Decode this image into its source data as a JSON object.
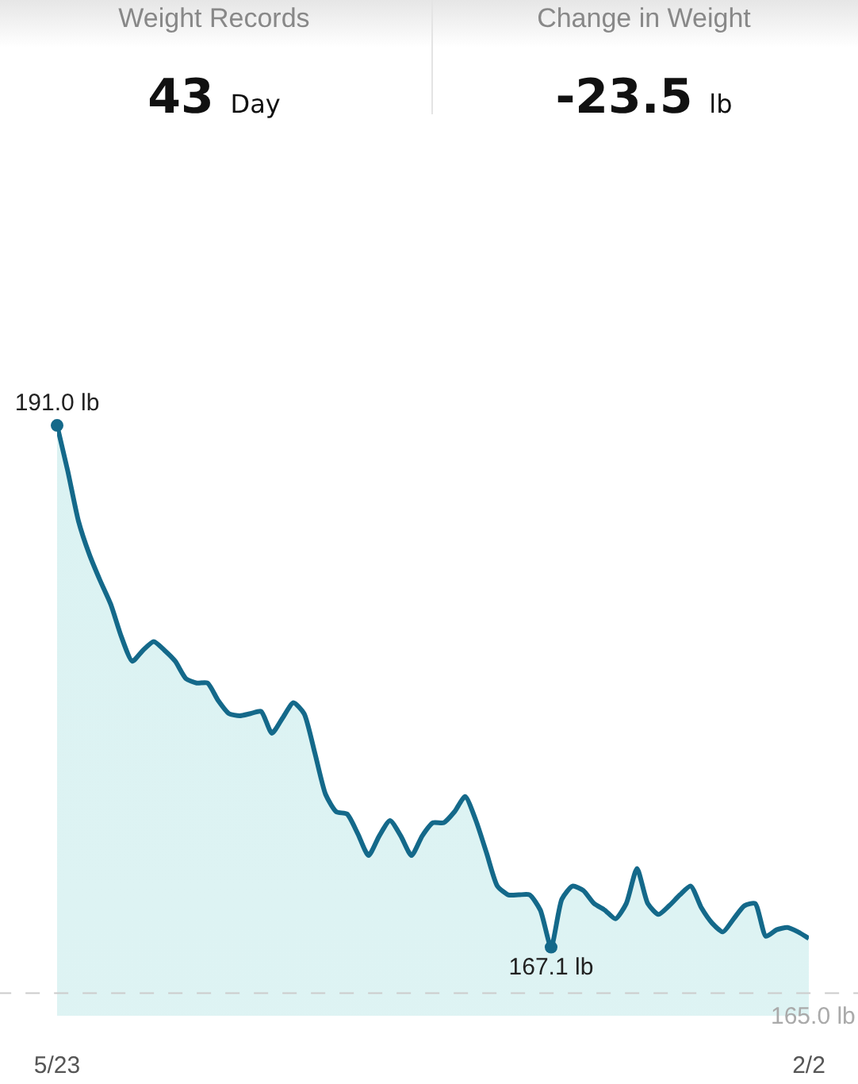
{
  "chart_data": {
    "type": "area",
    "annotations": [
      "Weight Records",
      "43 Day",
      "Change in Weight",
      "-23.5 lb"
    ],
    "categories": [
      "5/23",
      null,
      null,
      null,
      null,
      null,
      null,
      null,
      null,
      null,
      null,
      null,
      null,
      null,
      null,
      null,
      null,
      null,
      null,
      null,
      null,
      null,
      null,
      null,
      null,
      null,
      null,
      null,
      null,
      null,
      null,
      null,
      null,
      null,
      null,
      null,
      null,
      null,
      null,
      null,
      null,
      null,
      null,
      null,
      null,
      null,
      null,
      null,
      null,
      null,
      null,
      null,
      null,
      null,
      null,
      null,
      null,
      null,
      null,
      null,
      null,
      null,
      null,
      null,
      null,
      null,
      null,
      null,
      null,
      null,
      "2/2"
    ],
    "values": [
      191.0,
      188.9,
      186.6,
      185.1,
      183.9,
      182.8,
      181.3,
      180.2,
      180.7,
      181.1,
      180.7,
      180.2,
      179.4,
      179.2,
      179.2,
      178.4,
      177.8,
      177.7,
      177.8,
      177.9,
      176.9,
      177.6,
      178.3,
      177.8,
      176.0,
      174.1,
      173.3,
      173.2,
      172.3,
      171.3,
      172.2,
      172.9,
      172.2,
      171.3,
      172.2,
      172.8,
      172.8,
      173.3,
      174.0,
      172.9,
      171.4,
      169.9,
      169.5,
      169.5,
      169.5,
      168.8,
      167.1,
      169.3,
      169.9,
      169.7,
      169.1,
      168.8,
      168.4,
      169.1,
      170.7,
      169.1,
      168.6,
      169.0,
      169.5,
      169.9,
      168.9,
      168.2,
      167.8,
      168.4,
      169.0,
      169.1,
      167.6,
      167.9,
      168.0,
      167.8,
      167.5
    ],
    "value_labels": [
      "191.0 lb",
      null,
      null,
      null,
      null,
      null,
      null,
      null,
      null,
      null,
      null,
      null,
      null,
      null,
      null,
      null,
      null,
      null,
      null,
      null,
      null,
      null,
      null,
      null,
      null,
      null,
      null,
      null,
      null,
      null,
      null,
      null,
      null,
      null,
      null,
      null,
      null,
      null,
      null,
      null,
      null,
      null,
      null,
      null,
      null,
      null,
      "167.1 lb",
      null,
      null,
      null,
      null,
      null,
      null,
      null,
      null,
      null,
      null,
      null,
      null,
      null,
      null,
      null,
      null,
      null,
      null,
      null,
      null,
      null,
      null,
      null,
      null
    ],
    "color": "#14698a",
    "ref_lines": [
      {
        "axis": "y",
        "value": 165.0,
        "label": "165.0 lb",
        "color": "#cccccc",
        "line_style": "dashed"
      }
    ],
    "line_style": "solid"
  }
}
